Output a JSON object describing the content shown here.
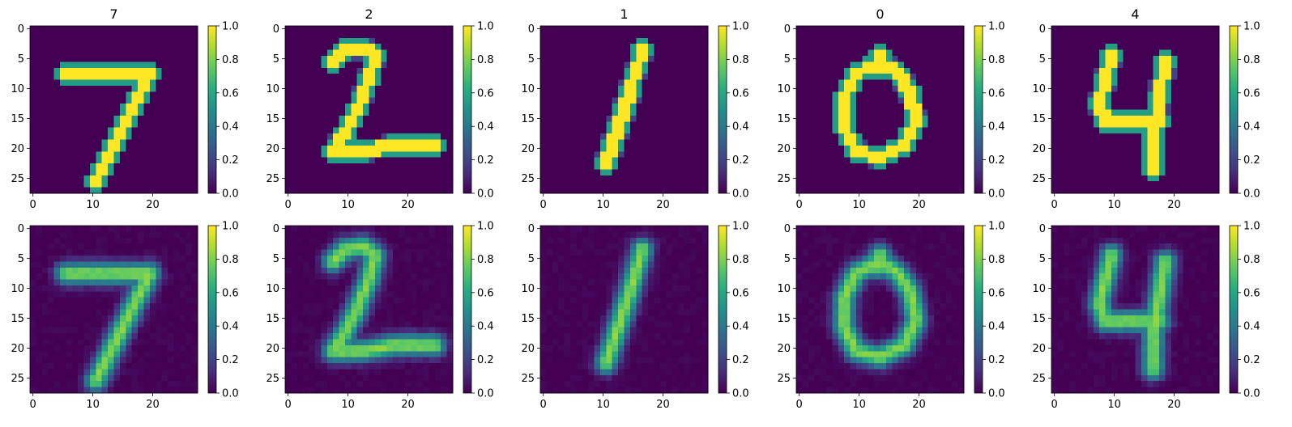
{
  "chart_data": {
    "type": "heatmap",
    "layout": "2 rows x 5 columns of image panels, each with a vertical colorbar",
    "row_descriptions": [
      "original digit images",
      "reconstructed digit images"
    ],
    "column_titles": [
      "7",
      "2",
      "1",
      "0",
      "4"
    ],
    "colormap": "viridis",
    "image_size": [
      28,
      28
    ],
    "x_ticks": [
      0,
      10,
      20
    ],
    "x_tick_labels": [
      "0",
      "10",
      "20"
    ],
    "y_ticks": [
      0,
      5,
      10,
      15,
      20,
      25
    ],
    "y_tick_labels": [
      "0",
      "5",
      "10",
      "15",
      "20",
      "25"
    ],
    "colorbar_range": [
      0.0,
      1.0
    ],
    "colorbar_ticks": [
      0.0,
      0.2,
      0.4,
      0.6,
      0.8,
      1.0
    ],
    "colorbar_tick_labels": [
      "0.0",
      "0.2",
      "0.4",
      "0.6",
      "0.8",
      "1.0"
    ],
    "strokes": {
      "7": [
        [
          [
            6,
            8
          ],
          [
            8,
            8
          ],
          [
            20,
            8
          ]
        ],
        [
          [
            20,
            8
          ],
          [
            17,
            14
          ],
          [
            14,
            20
          ],
          [
            11,
            26
          ]
        ]
      ],
      "2": [
        [
          [
            8,
            6
          ],
          [
            10,
            4
          ],
          [
            13,
            3.5
          ],
          [
            15,
            5
          ],
          [
            14,
            9
          ],
          [
            12,
            14
          ],
          [
            10,
            18
          ],
          [
            8,
            21
          ],
          [
            13,
            21
          ],
          [
            18,
            20
          ],
          [
            25,
            20
          ]
        ]
      ],
      "1": [
        [
          [
            17,
            4
          ],
          [
            15,
            11
          ],
          [
            13,
            17
          ],
          [
            11,
            23
          ]
        ]
      ],
      "0": [
        [
          [
            14,
            6
          ],
          [
            10,
            8
          ],
          [
            8,
            12
          ],
          [
            8,
            17
          ],
          [
            10,
            21
          ],
          [
            14,
            22
          ],
          [
            18,
            20
          ],
          [
            20,
            16
          ],
          [
            19,
            11
          ],
          [
            17,
            8
          ],
          [
            14,
            6
          ]
        ],
        [
          [
            14,
            5
          ],
          [
            14,
            7
          ]
        ]
      ],
      "4": [
        [
          [
            10,
            5
          ],
          [
            9,
            9
          ],
          [
            8,
            13
          ],
          [
            9,
            16
          ],
          [
            13,
            16
          ],
          [
            18,
            16
          ]
        ],
        [
          [
            19,
            6
          ],
          [
            18,
            12
          ],
          [
            17,
            18
          ],
          [
            17,
            24
          ]
        ]
      ]
    }
  }
}
